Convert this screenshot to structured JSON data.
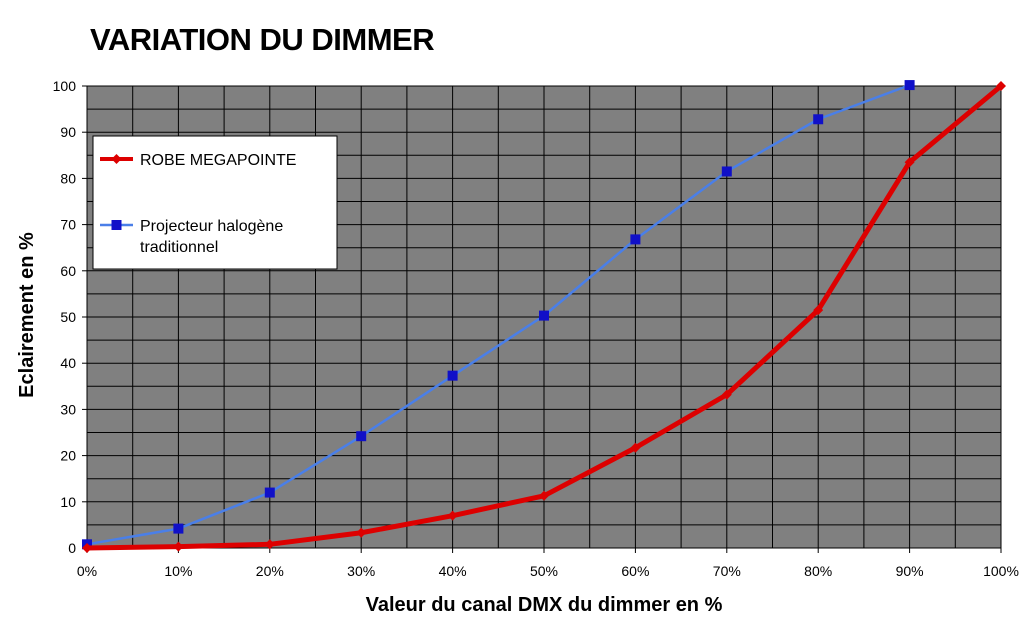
{
  "chart_data": {
    "type": "line",
    "title": "VARIATION DU DIMMER",
    "xlabel": "Valeur du canal DMX du dimmer en %",
    "ylabel": "Eclairement en %",
    "x": [
      0,
      10,
      20,
      30,
      40,
      50,
      60,
      70,
      80,
      90,
      100
    ],
    "x_tick_labels": [
      "0%",
      "10%",
      "20%",
      "30%",
      "40%",
      "50%",
      "60%",
      "70%",
      "80%",
      "90%",
      "100%"
    ],
    "xlim": [
      0,
      100
    ],
    "ylim": [
      0,
      100
    ],
    "y_ticks": [
      0,
      10,
      20,
      30,
      40,
      50,
      60,
      70,
      80,
      90,
      100
    ],
    "grid": true,
    "plot_background": "#808080",
    "legend_position": "top-left",
    "series": [
      {
        "name": "ROBE MEGAPOINTE",
        "color": "#dd0000",
        "marker": "diamond",
        "x": [
          0,
          10,
          20,
          30,
          40,
          50,
          60,
          70,
          80,
          90,
          100
        ],
        "values": [
          0,
          0.3,
          0.8,
          3.3,
          7,
          11.3,
          21.7,
          33.2,
          51.5,
          83.5,
          100
        ]
      },
      {
        "name": "Projecteur halogène traditionnel",
        "legend_lines": [
          "Projecteur halogène",
          "traditionnel"
        ],
        "color": "#4a7fe8",
        "marker_color": "#1010c8",
        "marker": "square",
        "x": [
          0,
          10,
          20,
          30,
          40,
          50,
          60,
          70,
          80,
          90
        ],
        "values": [
          0.8,
          4.2,
          12,
          24.2,
          37.3,
          50.3,
          66.8,
          81.5,
          92.8,
          100.2
        ]
      }
    ]
  }
}
